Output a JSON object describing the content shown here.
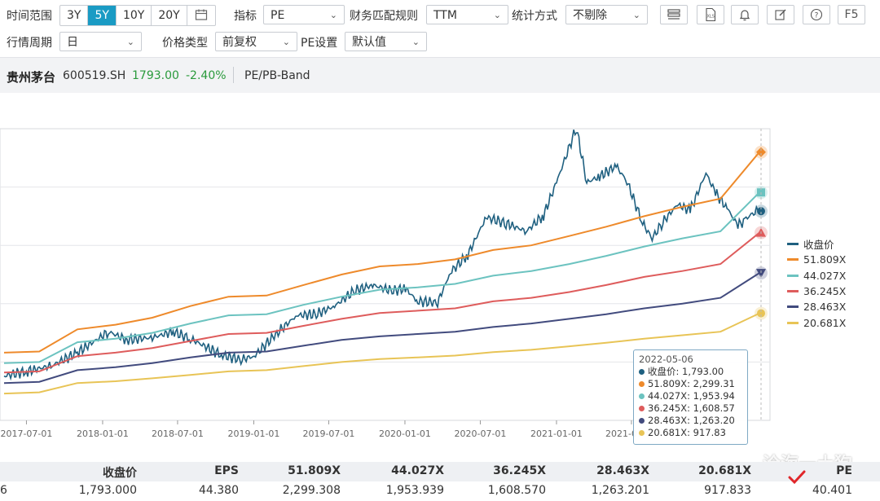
{
  "toolbar": {
    "time_range_label": "时间范围",
    "time_ranges": [
      "3Y",
      "5Y",
      "10Y",
      "20Y"
    ],
    "active_range": "5Y",
    "indicator_label": "指标",
    "indicator_value": "PE",
    "finance_rule_label": "财务匹配规则",
    "finance_rule_value": "TTM",
    "stat_method_label": "统计方式",
    "stat_method_value": "不剔除",
    "period_label": "行情周期",
    "period_value": "日",
    "price_type_label": "价格类型",
    "price_type_value": "前复权",
    "pe_setting_label": "PE设置",
    "pe_setting_value": "默认值",
    "f5_label": "F5"
  },
  "stock": {
    "name": "贵州茅台",
    "code": "600519.SH",
    "price": "1793.00",
    "change": "-2.40%",
    "view": "PE/PB-Band"
  },
  "colors": {
    "close": "#1f6080",
    "pe1": "#ee8a2b",
    "pe2": "#6cc3c0",
    "pe3": "#de5c5c",
    "pe4": "#424b7e",
    "pe5": "#e8c456",
    "active": "#1a9bc4",
    "up_down": "#2a9a3c"
  },
  "chart_data": {
    "type": "line",
    "x_ticks": [
      "2017-07-01",
      "2018-01-01",
      "2018-07-01",
      "2019-01-01",
      "2019-07-01",
      "2020-01-01",
      "2020-07-01",
      "2021-01-01",
      "2021-07-01"
    ],
    "x_range": [
      "2017-05-08",
      "2022-05-06"
    ],
    "ylim": [
      0,
      2500
    ],
    "grid": true,
    "legend_position": "right",
    "series": [
      {
        "name": "收盘价",
        "color": "#1f6080",
        "points": [
          [
            "2017-05-08",
            380
          ],
          [
            "2017-07-01",
            420
          ],
          [
            "2017-09-01",
            470
          ],
          [
            "2017-11-01",
            580
          ],
          [
            "2018-01-15",
            760
          ],
          [
            "2018-03-01",
            690
          ],
          [
            "2018-05-01",
            710
          ],
          [
            "2018-06-20",
            760
          ],
          [
            "2018-08-01",
            700
          ],
          [
            "2018-10-15",
            560
          ],
          [
            "2018-12-01",
            520
          ],
          [
            "2019-01-02",
            550
          ],
          [
            "2019-03-01",
            760
          ],
          [
            "2019-04-15",
            900
          ],
          [
            "2019-06-01",
            910
          ],
          [
            "2019-07-15",
            980
          ],
          [
            "2019-09-01",
            1110
          ],
          [
            "2019-10-15",
            1160
          ],
          [
            "2019-12-01",
            1110
          ],
          [
            "2020-01-02",
            1130
          ],
          [
            "2020-02-01",
            1020
          ],
          [
            "2020-03-20",
            1010
          ],
          [
            "2020-04-20",
            1270
          ],
          [
            "2020-06-01",
            1420
          ],
          [
            "2020-07-15",
            1740
          ],
          [
            "2020-09-01",
            1690
          ],
          [
            "2020-10-20",
            1620
          ],
          [
            "2020-12-01",
            1760
          ],
          [
            "2021-01-01",
            2040
          ],
          [
            "2021-02-18",
            2510
          ],
          [
            "2021-03-15",
            2040
          ],
          [
            "2021-04-15",
            2090
          ],
          [
            "2021-05-25",
            2180
          ],
          [
            "2021-06-20",
            2050
          ],
          [
            "2021-07-28",
            1690
          ],
          [
            "2021-08-20",
            1560
          ],
          [
            "2021-09-15",
            1700
          ],
          [
            "2021-10-20",
            1850
          ],
          [
            "2021-11-20",
            1800
          ],
          [
            "2021-12-28",
            2120
          ],
          [
            "2022-01-20",
            1950
          ],
          [
            "2022-02-20",
            1800
          ],
          [
            "2022-03-15",
            1670
          ],
          [
            "2022-04-01",
            1720
          ],
          [
            "2022-04-25",
            1790
          ],
          [
            "2022-05-06",
            1793
          ]
        ]
      },
      {
        "name": "51.809X",
        "color": "#ee8a2b",
        "points": [
          [
            "2017-05-08",
            580
          ],
          [
            "2017-08-01",
            590
          ],
          [
            "2017-11-01",
            780
          ],
          [
            "2018-02-01",
            820
          ],
          [
            "2018-05-01",
            880
          ],
          [
            "2018-08-01",
            980
          ],
          [
            "2018-11-01",
            1060
          ],
          [
            "2019-02-01",
            1070
          ],
          [
            "2019-05-01",
            1160
          ],
          [
            "2019-08-01",
            1250
          ],
          [
            "2019-11-01",
            1320
          ],
          [
            "2020-02-01",
            1340
          ],
          [
            "2020-05-01",
            1380
          ],
          [
            "2020-08-01",
            1460
          ],
          [
            "2020-11-01",
            1500
          ],
          [
            "2021-02-01",
            1580
          ],
          [
            "2021-05-01",
            1660
          ],
          [
            "2021-08-01",
            1750
          ],
          [
            "2021-11-01",
            1830
          ],
          [
            "2022-02-01",
            1900
          ],
          [
            "2022-05-06",
            2299.31
          ]
        ]
      },
      {
        "name": "44.027X",
        "color": "#6cc3c0",
        "points": [
          [
            "2017-05-08",
            490
          ],
          [
            "2017-08-01",
            500
          ],
          [
            "2017-11-01",
            670
          ],
          [
            "2018-02-01",
            700
          ],
          [
            "2018-05-01",
            750
          ],
          [
            "2018-08-01",
            830
          ],
          [
            "2018-11-01",
            900
          ],
          [
            "2019-02-01",
            910
          ],
          [
            "2019-05-01",
            990
          ],
          [
            "2019-08-01",
            1060
          ],
          [
            "2019-11-01",
            1120
          ],
          [
            "2020-02-01",
            1140
          ],
          [
            "2020-05-01",
            1170
          ],
          [
            "2020-08-01",
            1240
          ],
          [
            "2020-11-01",
            1280
          ],
          [
            "2021-02-01",
            1340
          ],
          [
            "2021-05-01",
            1410
          ],
          [
            "2021-08-01",
            1490
          ],
          [
            "2021-11-01",
            1560
          ],
          [
            "2022-02-01",
            1620
          ],
          [
            "2022-05-06",
            1953.94
          ]
        ]
      },
      {
        "name": "36.245X",
        "color": "#de5c5c",
        "points": [
          [
            "2017-05-08",
            410
          ],
          [
            "2017-08-01",
            420
          ],
          [
            "2017-11-01",
            550
          ],
          [
            "2018-02-01",
            580
          ],
          [
            "2018-05-01",
            620
          ],
          [
            "2018-08-01",
            680
          ],
          [
            "2018-11-01",
            740
          ],
          [
            "2019-02-01",
            750
          ],
          [
            "2019-05-01",
            810
          ],
          [
            "2019-08-01",
            870
          ],
          [
            "2019-11-01",
            920
          ],
          [
            "2020-02-01",
            940
          ],
          [
            "2020-05-01",
            960
          ],
          [
            "2020-08-01",
            1020
          ],
          [
            "2020-11-01",
            1050
          ],
          [
            "2021-02-01",
            1100
          ],
          [
            "2021-05-01",
            1160
          ],
          [
            "2021-08-01",
            1230
          ],
          [
            "2021-11-01",
            1280
          ],
          [
            "2022-02-01",
            1340
          ],
          [
            "2022-05-06",
            1608.57
          ]
        ]
      },
      {
        "name": "28.463X",
        "color": "#424b7e",
        "points": [
          [
            "2017-05-08",
            320
          ],
          [
            "2017-08-01",
            330
          ],
          [
            "2017-11-01",
            430
          ],
          [
            "2018-02-01",
            455
          ],
          [
            "2018-05-01",
            490
          ],
          [
            "2018-08-01",
            540
          ],
          [
            "2018-11-01",
            580
          ],
          [
            "2019-02-01",
            590
          ],
          [
            "2019-05-01",
            640
          ],
          [
            "2019-08-01",
            690
          ],
          [
            "2019-11-01",
            720
          ],
          [
            "2020-02-01",
            740
          ],
          [
            "2020-05-01",
            760
          ],
          [
            "2020-08-01",
            800
          ],
          [
            "2020-11-01",
            830
          ],
          [
            "2021-02-01",
            870
          ],
          [
            "2021-05-01",
            910
          ],
          [
            "2021-08-01",
            960
          ],
          [
            "2021-11-01",
            1000
          ],
          [
            "2022-02-01",
            1050
          ],
          [
            "2022-05-06",
            1263.2
          ]
        ]
      },
      {
        "name": "20.681X",
        "color": "#e8c456",
        "points": [
          [
            "2017-05-08",
            230
          ],
          [
            "2017-08-01",
            240
          ],
          [
            "2017-11-01",
            320
          ],
          [
            "2018-02-01",
            335
          ],
          [
            "2018-05-01",
            360
          ],
          [
            "2018-08-01",
            390
          ],
          [
            "2018-11-01",
            420
          ],
          [
            "2019-02-01",
            430
          ],
          [
            "2019-05-01",
            465
          ],
          [
            "2019-08-01",
            500
          ],
          [
            "2019-11-01",
            525
          ],
          [
            "2020-02-01",
            540
          ],
          [
            "2020-05-01",
            555
          ],
          [
            "2020-08-01",
            585
          ],
          [
            "2020-11-01",
            605
          ],
          [
            "2021-02-01",
            635
          ],
          [
            "2021-05-01",
            665
          ],
          [
            "2021-08-01",
            700
          ],
          [
            "2021-11-01",
            730
          ],
          [
            "2022-02-01",
            760
          ],
          [
            "2022-05-06",
            917.83
          ]
        ]
      }
    ]
  },
  "tooltip": {
    "date": "2022-05-06",
    "rows": [
      {
        "label": "收盘价",
        "value": "1,793.00",
        "color": "#1f6080"
      },
      {
        "label": "51.809X",
        "value": "2,299.31",
        "color": "#ee8a2b"
      },
      {
        "label": "44.027X",
        "value": "1,953.94",
        "color": "#6cc3c0"
      },
      {
        "label": "36.245X",
        "value": "1,608.57",
        "color": "#de5c5c"
      },
      {
        "label": "28.463X",
        "value": "1,263.20",
        "color": "#424b7e"
      },
      {
        "label": "20.681X",
        "value": "917.83",
        "color": "#e8c456"
      }
    ]
  },
  "table": {
    "headers": [
      "收盘价",
      "EPS",
      "51.809X",
      "44.027X",
      "36.245X",
      "28.463X",
      "20.681X",
      "PE"
    ],
    "row_prefix": "6",
    "values": [
      "1,793.000",
      "44.380",
      "2,299.308",
      "1,953.939",
      "1,608.570",
      "1,263.201",
      "917.833",
      "40.401"
    ]
  },
  "watermark": "沧海一土狗"
}
